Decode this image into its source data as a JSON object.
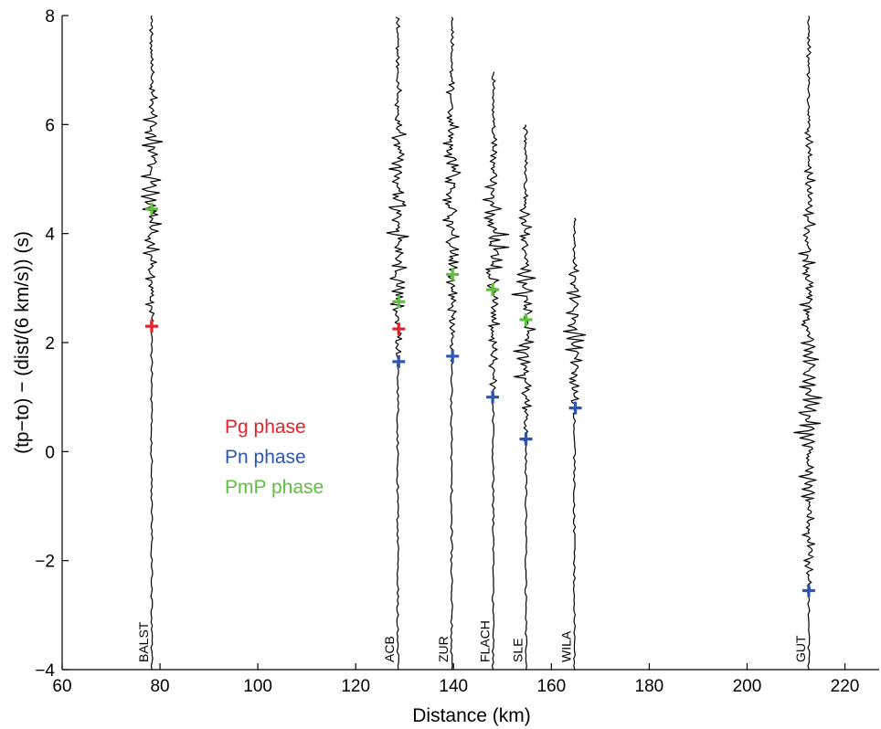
{
  "chart_data": {
    "type": "line",
    "title": "",
    "xlabel": "Distance (km)",
    "ylabel": "(tp−to) − (dist/(6 km/s)) (s)",
    "xlim": [
      60,
      227
    ],
    "ylim": [
      -4,
      8
    ],
    "xticks": [
      60,
      80,
      100,
      120,
      140,
      160,
      180,
      200,
      220
    ],
    "yticks": [
      -4,
      -2,
      0,
      2,
      4,
      6,
      8
    ],
    "xtick_labels": [
      "60",
      "80",
      "100",
      "120",
      "140",
      "160",
      "180",
      "200",
      "220"
    ],
    "ytick_labels": [
      "−4",
      "−2",
      "0",
      "2",
      "4",
      "6",
      "8"
    ],
    "grid": false,
    "legend_position": "left-center",
    "legend": [
      {
        "label": "Pg phase",
        "color": "#e8202a"
      },
      {
        "label": "Pn phase",
        "color": "#2f55b0"
      },
      {
        "label": "PmP phase",
        "color": "#5fbf3f"
      }
    ],
    "traces": [
      {
        "station": "BALST",
        "distance": 78.3,
        "onset": 2.3,
        "top": 8.0
      },
      {
        "station": "ACB",
        "distance": 128.6,
        "onset": 1.6,
        "top": 8.0
      },
      {
        "station": "ZUR",
        "distance": 139.6,
        "onset": 1.6,
        "top": 8.0
      },
      {
        "station": "FLACH",
        "distance": 148.1,
        "onset": 0.9,
        "top": 7.0
      },
      {
        "station": "SLE",
        "distance": 154.8,
        "onset": 0.2,
        "top": 6.0
      },
      {
        "station": "WILA",
        "distance": 164.7,
        "onset": 0.7,
        "top": 4.3
      },
      {
        "station": "GUT",
        "distance": 212.6,
        "onset": -2.6,
        "top": 8.0
      }
    ],
    "picks": [
      {
        "station": "BALST",
        "phase": "Pg",
        "x": 78.3,
        "y": 2.3
      },
      {
        "station": "BALST",
        "phase": "PmP",
        "x": 78.3,
        "y": 4.45
      },
      {
        "station": "ACB",
        "phase": "Pg",
        "x": 128.8,
        "y": 2.25
      },
      {
        "station": "ACB",
        "phase": "Pn",
        "x": 128.8,
        "y": 1.65
      },
      {
        "station": "ACB",
        "phase": "PmP",
        "x": 128.8,
        "y": 2.75
      },
      {
        "station": "ZUR",
        "phase": "Pn",
        "x": 139.8,
        "y": 1.75
      },
      {
        "station": "ZUR",
        "phase": "PmP",
        "x": 139.8,
        "y": 3.25
      },
      {
        "station": "FLACH",
        "phase": "Pn",
        "x": 148.0,
        "y": 1.0
      },
      {
        "station": "FLACH",
        "phase": "PmP",
        "x": 148.0,
        "y": 2.97
      },
      {
        "station": "SLE",
        "phase": "Pn",
        "x": 154.8,
        "y": 0.23
      },
      {
        "station": "SLE",
        "phase": "PmP",
        "x": 154.8,
        "y": 2.42
      },
      {
        "station": "WILA",
        "phase": "Pn",
        "x": 164.9,
        "y": 0.8
      },
      {
        "station": "GUT",
        "phase": "Pn",
        "x": 212.6,
        "y": -2.55
      }
    ]
  },
  "colors": {
    "Pg": "#e8202a",
    "Pn": "#2f55b0",
    "PmP": "#5fbf3f",
    "trace": "#000000"
  }
}
